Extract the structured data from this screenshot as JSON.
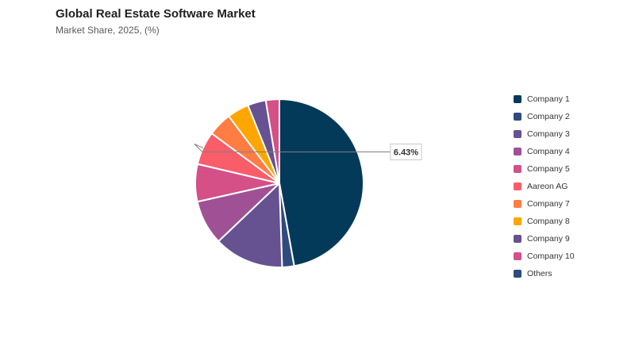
{
  "chart_data": {
    "type": "pie",
    "title": "Global Real Estate Software Market",
    "subtitle": "Market Share, 2025, (%)",
    "legend_position": "right",
    "categories": [
      "Company 1",
      "Company 2",
      "Company 3",
      "Company 4",
      "Company 5",
      "Aareon AG",
      "Company 7",
      "Company 8",
      "Company 9",
      "Company 10",
      "Others"
    ],
    "values": [
      47.2,
      2.3,
      13.4,
      8.6,
      7.2,
      6.43,
      4.6,
      4.2,
      3.5,
      2.6,
      0
    ],
    "colors": [
      "#033a5a",
      "#2f4b7c",
      "#665191",
      "#a05195",
      "#d45087",
      "#f95d6a",
      "#ff7c43",
      "#ffa600",
      "#665191",
      "#d45087",
      "#2f4b7c"
    ],
    "data_labels": [
      {
        "category": "Aareon AG",
        "text": "6.43%"
      }
    ]
  }
}
